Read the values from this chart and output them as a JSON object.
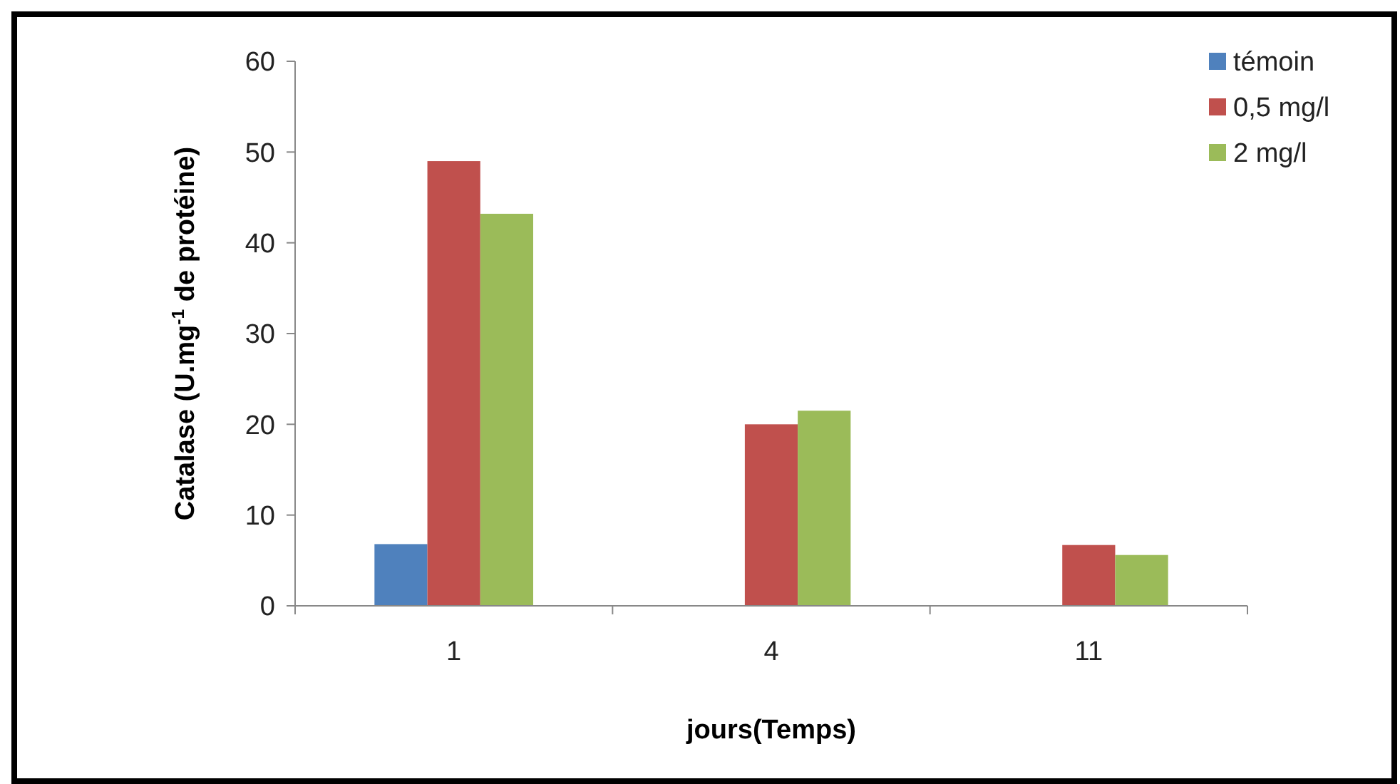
{
  "chart_data": {
    "type": "bar",
    "xlabel": "jours(Temps)",
    "ylabel": "Catalase (U.mg$^{-1}$ de protéine)",
    "categories": [
      "1",
      "4",
      "11"
    ],
    "series": [
      {
        "name": "témoin",
        "color": "#4f81bd",
        "values": [
          6.8,
          null,
          null
        ]
      },
      {
        "name": "0,5 mg/l",
        "color": "#c0504d",
        "values": [
          49,
          20,
          6.7
        ]
      },
      {
        "name": "2 mg/l",
        "color": "#9bbb59",
        "values": [
          43.2,
          21.5,
          5.6
        ]
      }
    ],
    "ylim": [
      0,
      60
    ],
    "yticks": [
      0,
      10,
      20,
      30,
      40,
      50,
      60
    ],
    "grid": false,
    "legend": "top right"
  }
}
